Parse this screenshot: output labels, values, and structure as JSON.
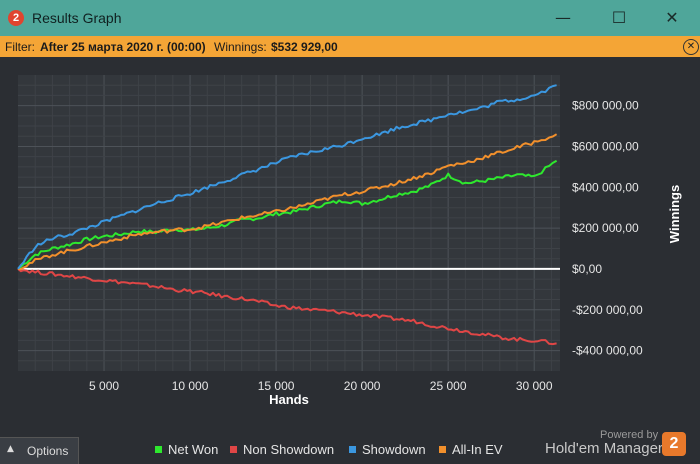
{
  "window": {
    "title": "Results Graph",
    "badge": "2",
    "minimize_glyph": "—",
    "maximize_glyph": "☐",
    "close_glyph": "✕"
  },
  "filter": {
    "label": "Filter:",
    "value": "After 25 марта 2020 г. (00:00)",
    "winnings_label": "Winnings:",
    "winnings_value": "$532 929,00",
    "close_glyph": "✕"
  },
  "options": {
    "label": "Options",
    "caret": "▲"
  },
  "brand": {
    "powered": "Powered by",
    "name": "Hold'em Manager",
    "logo": "2"
  },
  "colors": {
    "net_won": "#2ee82e",
    "non_showdown": "#e04646",
    "showdown": "#3b97e0",
    "all_in_ev": "#f2902c",
    "background": "#2b2e33",
    "plot_bg": "#33373c"
  },
  "chart_data": {
    "type": "line",
    "xlabel": "Hands",
    "ylabel": "Winnings",
    "xlim": [
      0,
      31500
    ],
    "ylim": [
      -500000,
      950000
    ],
    "x_ticks": [
      5000,
      10000,
      15000,
      20000,
      25000,
      30000
    ],
    "x_tick_labels": [
      "5 000",
      "10 000",
      "15 000",
      "20 000",
      "25 000",
      "30 000"
    ],
    "y_ticks": [
      800000,
      600000,
      400000,
      200000,
      0,
      -200000,
      -400000
    ],
    "y_tick_labels": [
      "$800 000,00",
      "$600 000,00",
      "$400 000,00",
      "$200 000,00",
      "$0,00",
      "-$200 000,00",
      "-$400 000,00"
    ],
    "grid": true,
    "legend_position": "bottom",
    "x": [
      0,
      1000,
      2000,
      3000,
      4000,
      5000,
      6000,
      7000,
      8000,
      9000,
      10000,
      11000,
      12000,
      13000,
      14000,
      15000,
      16000,
      17000,
      18000,
      19000,
      20000,
      21000,
      22000,
      23000,
      24000,
      25000,
      26000,
      27000,
      28000,
      29000,
      30000,
      31300
    ],
    "series": [
      {
        "name": "Net Won",
        "color": "#2ee82e",
        "values": [
          0,
          70000,
          100000,
          120000,
          145000,
          160000,
          170000,
          185000,
          180000,
          195000,
          190000,
          200000,
          215000,
          240000,
          250000,
          270000,
          280000,
          300000,
          320000,
          335000,
          320000,
          340000,
          365000,
          380000,
          410000,
          460000,
          420000,
          430000,
          445000,
          460000,
          450000,
          530000
        ]
      },
      {
        "name": "Non Showdown",
        "color": "#e04646",
        "values": [
          0,
          -15000,
          -25000,
          -35000,
          -45000,
          -55000,
          -65000,
          -75000,
          -85000,
          -100000,
          -110000,
          -120000,
          -135000,
          -145000,
          -160000,
          -180000,
          -190000,
          -200000,
          -205000,
          -215000,
          -225000,
          -235000,
          -245000,
          -255000,
          -275000,
          -290000,
          -305000,
          -320000,
          -335000,
          -345000,
          -350000,
          -365000
        ]
      },
      {
        "name": "Showdown",
        "color": "#3b97e0",
        "values": [
          0,
          110000,
          150000,
          170000,
          200000,
          230000,
          260000,
          290000,
          320000,
          345000,
          370000,
          400000,
          430000,
          460000,
          490000,
          520000,
          550000,
          570000,
          590000,
          610000,
          640000,
          660000,
          690000,
          710000,
          730000,
          760000,
          770000,
          790000,
          820000,
          830000,
          850000,
          900000
        ]
      },
      {
        "name": "All-In EV",
        "color": "#f2902c",
        "values": [
          0,
          40000,
          70000,
          90000,
          110000,
          130000,
          150000,
          170000,
          180000,
          190000,
          195000,
          210000,
          230000,
          250000,
          265000,
          280000,
          300000,
          320000,
          345000,
          365000,
          380000,
          400000,
          420000,
          445000,
          470000,
          505000,
          520000,
          545000,
          570000,
          595000,
          620000,
          660000
        ]
      }
    ]
  }
}
